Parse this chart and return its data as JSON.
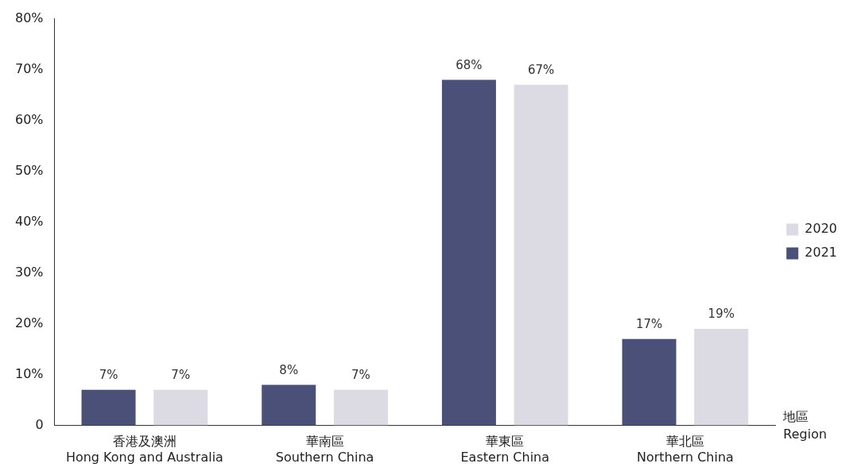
{
  "chart_data": {
    "type": "bar",
    "categories": [
      "香港及澳洲\nHong Kong and Australia",
      "華南區\nSouthern China",
      "華東區\nEastern China",
      "華北區\nNorthern China"
    ],
    "series": [
      {
        "name": "2021",
        "color": "#4a5078",
        "values": [
          7,
          8,
          68,
          17
        ],
        "value_labels": [
          "7%",
          "8%",
          "68%",
          "17%"
        ]
      },
      {
        "name": "2020",
        "color": "#dcdae2",
        "values": [
          7,
          7,
          67,
          19
        ],
        "value_labels": [
          "7%",
          "7%",
          "67%",
          "19%"
        ]
      }
    ],
    "xlabel": "地區\nRegion",
    "ylim": [
      0,
      80
    ],
    "yticks": [
      {
        "value": 0,
        "label": "0"
      },
      {
        "value": 10,
        "label": "10%"
      },
      {
        "value": 20,
        "label": "20%"
      },
      {
        "value": 30,
        "label": "30%"
      },
      {
        "value": 40,
        "label": "40%"
      },
      {
        "value": 50,
        "label": "50%"
      },
      {
        "value": 60,
        "label": "60%"
      },
      {
        "value": 70,
        "label": "70%"
      },
      {
        "value": 80,
        "label": "80%"
      }
    ],
    "grid": false,
    "legend": "right"
  }
}
